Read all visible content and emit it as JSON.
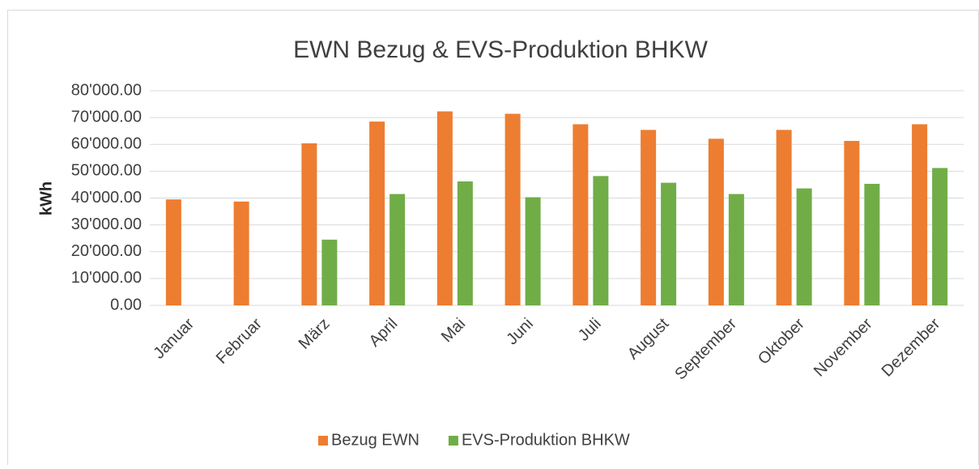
{
  "chart_data": {
    "type": "bar",
    "title": "EWN Bezug & EVS-Produktion BHKW",
    "y_label": "kWh",
    "categories": [
      "Januar",
      "Februar",
      "März",
      "April",
      "Mai",
      "Juni",
      "Juli",
      "August",
      "September",
      "Oktober",
      "November",
      "Dezember"
    ],
    "series": [
      {
        "name": "Bezug EWN",
        "color": "#ed7d31",
        "values": [
          39500,
          38700,
          60400,
          68500,
          72300,
          71400,
          67500,
          65400,
          62100,
          65400,
          61300,
          67500
        ]
      },
      {
        "name": "EVS-Produktion BHKW",
        "color": "#70ad47",
        "values": [
          null,
          null,
          24500,
          41500,
          46200,
          40300,
          48200,
          45700,
          41500,
          43600,
          45300,
          51200
        ]
      }
    ],
    "ylim": [
      0,
      80000
    ],
    "yticks": [
      {
        "value": 0,
        "label": "0.00"
      },
      {
        "value": 10000,
        "label": "10'000.00"
      },
      {
        "value": 20000,
        "label": "20'000.00"
      },
      {
        "value": 30000,
        "label": "30'000.00"
      },
      {
        "value": 40000,
        "label": "40'000.00"
      },
      {
        "value": 50000,
        "label": "50'000.00"
      },
      {
        "value": 60000,
        "label": "60'000.00"
      },
      {
        "value": 70000,
        "label": "70'000.00"
      },
      {
        "value": 80000,
        "label": "80'000.00"
      }
    ],
    "grid": true,
    "legend": "bottom"
  }
}
